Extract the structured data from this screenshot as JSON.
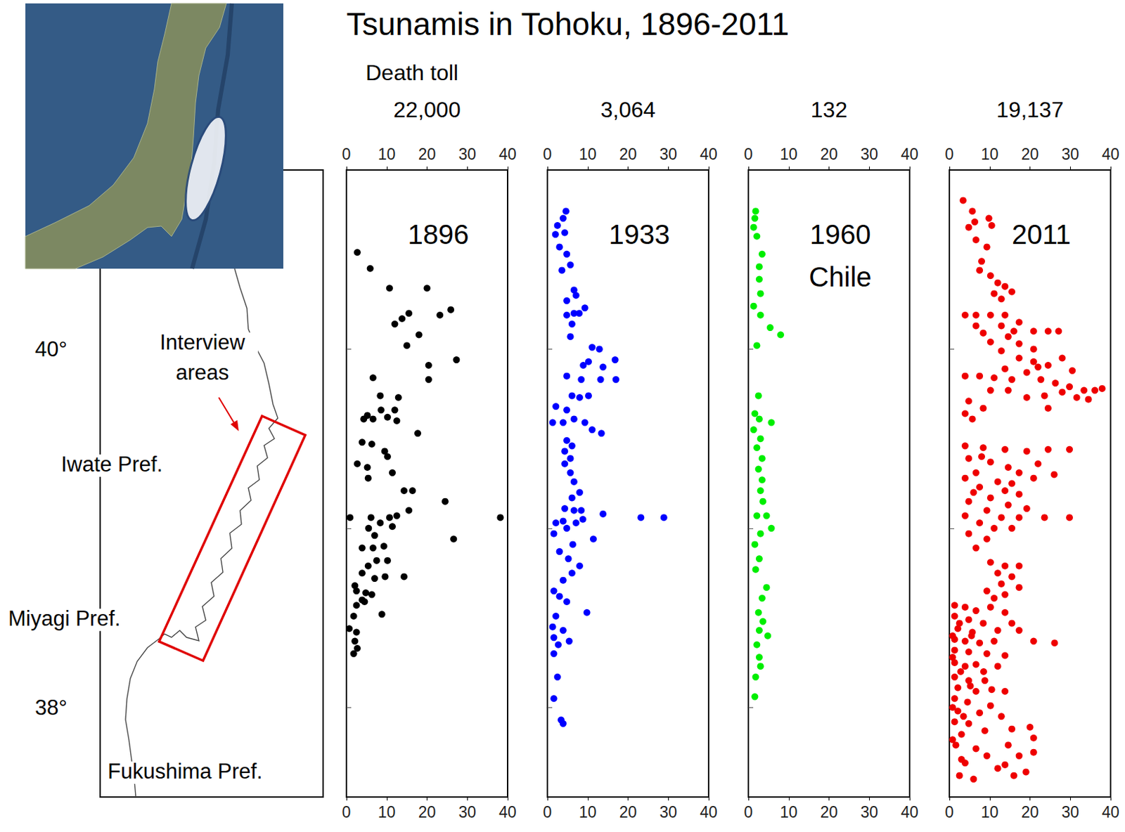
{
  "title": "Tsunamis in Tohoku, 1896-2011",
  "death_toll_heading": "Death toll",
  "map": {
    "ylim": [
      37.5,
      41
    ],
    "yticks": [
      {
        "value": 38,
        "label": "38°"
      },
      {
        "value": 40,
        "label": "40°"
      }
    ],
    "annotation": [
      "Interview",
      "areas"
    ],
    "regions": [
      "Iwate Pref.",
      "Miyagi Pref.",
      "Fukushima Pref."
    ]
  },
  "chart_data": [
    {
      "type": "scatter",
      "title": "1896",
      "death_toll": "22,000",
      "color": "#000000",
      "marker": "circle",
      "xlim": [
        0,
        40
      ],
      "xticks": [
        0,
        10,
        20,
        30,
        40
      ],
      "ylim": [
        37.5,
        41
      ],
      "yticks": [
        38,
        39,
        40
      ],
      "grid": false,
      "tick_labels": "x",
      "x": [
        2.7,
        5.9,
        10.7,
        20.0,
        25.9,
        23.2,
        15.5,
        13.8,
        12.0,
        18.0,
        15.0,
        27.3,
        20.4,
        20.4,
        6.6,
        8.4,
        12.9,
        8.6,
        12.0,
        5.2,
        4.3,
        6.6,
        10.2,
        12.5,
        17.7,
        3.9,
        6.3,
        9.5,
        10.2,
        2.7,
        5.2,
        11.4,
        5.4,
        14.3,
        16.4,
        24.5,
        15.5,
        12.5,
        38.2,
        10.7,
        6.1,
        0.9,
        8.4,
        11.4,
        5.5,
        26.6,
        7.0,
        9.3,
        3.9,
        6.6,
        7.5,
        10.2,
        5.4,
        3.9,
        9.6,
        14.3,
        7.0,
        2.1,
        2.5,
        4.8,
        6.3,
        3.9,
        8.8,
        2.5,
        1.8,
        0.7,
        2.5,
        2.1,
        1.8,
        2.7,
        4.5
      ],
      "values": [
        40.54,
        40.45,
        40.34,
        40.34,
        40.22,
        40.19,
        40.2,
        40.17,
        40.14,
        40.08,
        40.02,
        39.94,
        39.91,
        39.83,
        39.84,
        39.74,
        39.73,
        39.66,
        39.66,
        39.63,
        39.61,
        39.61,
        39.62,
        39.6,
        39.53,
        39.48,
        39.47,
        39.43,
        39.4,
        39.36,
        39.34,
        39.31,
        39.28,
        39.21,
        39.21,
        39.15,
        39.1,
        39.07,
        39.06,
        39.06,
        39.06,
        39.06,
        39.03,
        39.01,
        39.0,
        38.94,
        38.96,
        38.9,
        38.89,
        38.89,
        38.82,
        38.82,
        38.79,
        38.75,
        38.73,
        38.73,
        38.72,
        38.68,
        38.65,
        38.64,
        38.63,
        38.6,
        38.52,
        38.57,
        38.51,
        38.44,
        38.42,
        38.37,
        38.3,
        38.33,
        38.59
      ]
    },
    {
      "type": "scatter",
      "title": "1933",
      "death_toll": "3,064",
      "color": "#0000ff",
      "marker": "circle",
      "xlim": [
        0,
        40
      ],
      "xticks": [
        0,
        10,
        20,
        30,
        40
      ],
      "ylim": [
        37.5,
        41
      ],
      "yticks": [
        38,
        39,
        40
      ],
      "grid": false,
      "tick_labels": "x",
      "x": [
        4.6,
        3.9,
        2.5,
        2.0,
        4.3,
        3.0,
        4.8,
        5.7,
        3.6,
        6.6,
        7.1,
        4.8,
        6.6,
        4.8,
        7.9,
        9.3,
        6.1,
        5.7,
        11.1,
        12.9,
        16.8,
        10.2,
        8.9,
        13.8,
        4.8,
        8.4,
        13.2,
        17.0,
        6.1,
        8.0,
        10.2,
        2.1,
        4.8,
        1.3,
        3.9,
        6.6,
        9.3,
        11.1,
        13.4,
        4.8,
        6.1,
        4.3,
        5.7,
        4.3,
        5.7,
        6.6,
        8.0,
        6.1,
        4.3,
        6.6,
        8.4,
        13.8,
        23.2,
        28.9,
        2.1,
        3.9,
        4.8,
        7.1,
        8.8,
        11.4,
        1.6,
        6.3,
        3.0,
        5.2,
        8.0,
        6.1,
        3.9,
        1.6,
        3.0,
        4.8,
        9.8,
        2.1,
        1.3,
        3.9,
        1.6,
        2.7,
        5.4,
        1.6,
        2.5,
        1.6,
        3.9,
        3.4
      ],
      "values": [
        40.77,
        40.73,
        40.69,
        40.64,
        40.65,
        40.57,
        40.53,
        40.47,
        40.44,
        40.33,
        40.3,
        40.27,
        40.2,
        40.19,
        40.2,
        40.23,
        40.14,
        40.07,
        40.01,
        40.0,
        39.94,
        39.93,
        39.91,
        39.9,
        39.85,
        39.83,
        39.83,
        39.83,
        39.74,
        39.73,
        39.74,
        39.68,
        39.66,
        39.59,
        39.59,
        39.61,
        39.59,
        39.55,
        39.53,
        39.49,
        39.46,
        39.43,
        39.39,
        39.36,
        39.31,
        39.26,
        39.2,
        39.17,
        39.11,
        39.1,
        39.1,
        39.08,
        39.06,
        39.06,
        39.03,
        39.04,
        39.0,
        39.03,
        39.05,
        38.94,
        38.97,
        38.91,
        38.87,
        38.83,
        38.79,
        38.75,
        38.71,
        38.65,
        38.62,
        38.59,
        38.53,
        38.51,
        38.45,
        38.43,
        38.39,
        38.35,
        38.37,
        38.3,
        38.17,
        38.05,
        37.91,
        37.93
      ]
    },
    {
      "type": "scatter",
      "title": "1960",
      "subtitle": "Chile",
      "death_toll": "132",
      "color": "#00ee00",
      "marker": "circle",
      "xlim": [
        0,
        40
      ],
      "xticks": [
        0,
        10,
        20,
        30,
        40
      ],
      "ylim": [
        37.5,
        41
      ],
      "yticks": [
        38,
        39,
        40
      ],
      "grid": false,
      "tick_labels": "x",
      "x": [
        1.8,
        1.6,
        1.3,
        2.1,
        3.4,
        2.7,
        2.7,
        3.0,
        1.3,
        3.0,
        5.4,
        8.0,
        2.1,
        2.5,
        1.6,
        2.7,
        5.7,
        1.3,
        3.0,
        2.1,
        3.4,
        2.5,
        3.4,
        3.0,
        3.6,
        4.5,
        2.1,
        5.7,
        3.0,
        1.6,
        2.7,
        1.8,
        4.5,
        3.4,
        2.5,
        3.6,
        2.7,
        4.8,
        2.1,
        2.7,
        3.0,
        1.8,
        1.6
      ],
      "values": [
        40.77,
        40.73,
        40.68,
        40.63,
        40.53,
        40.46,
        40.39,
        40.31,
        40.24,
        40.19,
        40.12,
        40.08,
        40.02,
        39.74,
        39.64,
        39.61,
        39.59,
        39.55,
        39.5,
        39.45,
        39.39,
        39.33,
        39.27,
        39.21,
        39.15,
        39.07,
        39.07,
        39.0,
        38.97,
        38.91,
        38.83,
        38.77,
        38.67,
        38.61,
        38.53,
        38.48,
        38.43,
        38.4,
        38.35,
        38.28,
        38.23,
        38.17,
        38.06
      ]
    },
    {
      "type": "scatter",
      "title": "2011",
      "death_toll": "19,137",
      "color": "#ee0000",
      "marker": "circle",
      "xlim": [
        0,
        40
      ],
      "xticks": [
        0,
        10,
        20,
        30,
        40
      ],
      "ylim": [
        37.5,
        41
      ],
      "yticks": [
        38,
        39,
        40
      ],
      "grid": false,
      "tick_labels": "x",
      "x": [
        3.4,
        5.7,
        6.3,
        4.8,
        9.8,
        10.5,
        6.6,
        9.3,
        8.0,
        7.5,
        10.2,
        12.0,
        13.8,
        15.5,
        11.1,
        12.9,
        3.9,
        6.6,
        10.2,
        13.8,
        6.6,
        12.9,
        17.3,
        20.9,
        24.5,
        27.1,
        8.4,
        14.6,
        10.2,
        17.3,
        20.9,
        12.9,
        17.3,
        20.9,
        24.5,
        28.0,
        13.8,
        19.2,
        3.9,
        7.5,
        11.1,
        15.5,
        22.7,
        26.3,
        29.8,
        33.4,
        37.9,
        36.1,
        31.6,
        28.0,
        23.6,
        19.2,
        14.6,
        10.2,
        4.8,
        8.4,
        24.5,
        3.9,
        5.7,
        3.9,
        8.4,
        13.8,
        19.2,
        24.5,
        29.8,
        4.8,
        10.2,
        14.6,
        6.6,
        17.3,
        3.9,
        12.0,
        20.9,
        7.5,
        13.8,
        10.2,
        17.3,
        4.8,
        14.6,
        19.2,
        9.3,
        3.9,
        12.9,
        17.3,
        23.6,
        29.8,
        7.5,
        11.1,
        15.5,
        4.8,
        9.3,
        6.6,
        10.2,
        13.8,
        17.3,
        12.0,
        15.5,
        12.9,
        17.3,
        9.3,
        13.8,
        11.1,
        1.3,
        3.9,
        6.6,
        10.2,
        13.8,
        1.3,
        4.8,
        8.4,
        15.5,
        2.1,
        5.7,
        12.0,
        17.3,
        1.3,
        3.9,
        7.5,
        11.1,
        20.9,
        26.1,
        1.3,
        4.8,
        9.3,
        13.8,
        1.3,
        3.9,
        6.6,
        12.0,
        1.3,
        4.8,
        8.8,
        2.1,
        6.6,
        13.8,
        1.3,
        4.5,
        10.2,
        2.1,
        7.5,
        12.9,
        1.3,
        4.8,
        3.0,
        8.8,
        15.5,
        20.0,
        1.6,
        6.6,
        14.6,
        20.9,
        3.0,
        9.3,
        13.8,
        17.3,
        20.9,
        3.9,
        12.0,
        2.5,
        5.5,
        0.8,
        2.8,
        5.2,
        0.8,
        3.5,
        0.8,
        2.5,
        6.0,
        16.0,
        19.0,
        8.5,
        10.5,
        0.8,
        16.0,
        22.0,
        30.5,
        34.5,
        8.0,
        22.0,
        15.5,
        6.0,
        26.0
      ],
      "values": [
        40.83,
        40.77,
        40.71,
        40.68,
        40.73,
        40.69,
        40.61,
        40.57,
        40.49,
        40.44,
        40.41,
        40.37,
        40.35,
        40.32,
        40.31,
        40.28,
        40.19,
        40.19,
        40.19,
        40.19,
        40.13,
        40.13,
        40.15,
        40.1,
        40.1,
        40.1,
        40.09,
        40.07,
        40.04,
        40.03,
        40.0,
        39.99,
        39.95,
        39.93,
        39.91,
        39.95,
        39.89,
        39.87,
        39.85,
        39.85,
        39.84,
        39.83,
        39.83,
        39.81,
        39.79,
        39.77,
        39.78,
        39.77,
        39.73,
        39.76,
        39.74,
        39.73,
        39.77,
        39.77,
        39.71,
        39.67,
        39.67,
        39.64,
        39.61,
        39.46,
        39.45,
        39.44,
        39.43,
        39.44,
        39.44,
        39.39,
        39.37,
        39.34,
        39.31,
        39.31,
        39.28,
        39.26,
        39.28,
        39.23,
        39.21,
        39.17,
        39.19,
        39.15,
        39.13,
        39.11,
        39.1,
        39.07,
        39.06,
        39.06,
        39.06,
        39.06,
        39.03,
        39.0,
        39.0,
        38.97,
        38.94,
        38.89,
        38.81,
        38.79,
        38.79,
        38.75,
        38.73,
        38.69,
        38.67,
        38.65,
        38.63,
        38.61,
        38.57,
        38.56,
        38.54,
        38.56,
        38.53,
        38.51,
        38.49,
        38.47,
        38.47,
        38.44,
        38.42,
        38.43,
        38.43,
        38.38,
        38.37,
        38.36,
        38.37,
        38.37,
        38.36,
        38.32,
        38.31,
        38.3,
        38.29,
        38.25,
        38.23,
        38.24,
        38.23,
        38.17,
        38.15,
        38.15,
        38.11,
        38.09,
        38.09,
        38.05,
        38.03,
        38.01,
        37.98,
        37.97,
        37.95,
        37.92,
        37.91,
        37.85,
        37.87,
        37.88,
        37.89,
        37.79,
        37.77,
        37.79,
        37.83,
        37.71,
        37.73,
        37.68,
        37.73,
        37.75,
        37.69,
        37.66,
        38.47,
        38.4,
        38.28,
        38.2,
        38.12,
        38.0,
        37.95,
        37.82,
        37.62,
        37.6,
        37.62,
        37.64,
        38.2,
        38.1,
        38.4,
        40.1,
        39.9,
        39.88,
        39.72,
        39.4,
        39.36,
        39.25,
        39.2,
        39.3
      ]
    }
  ]
}
